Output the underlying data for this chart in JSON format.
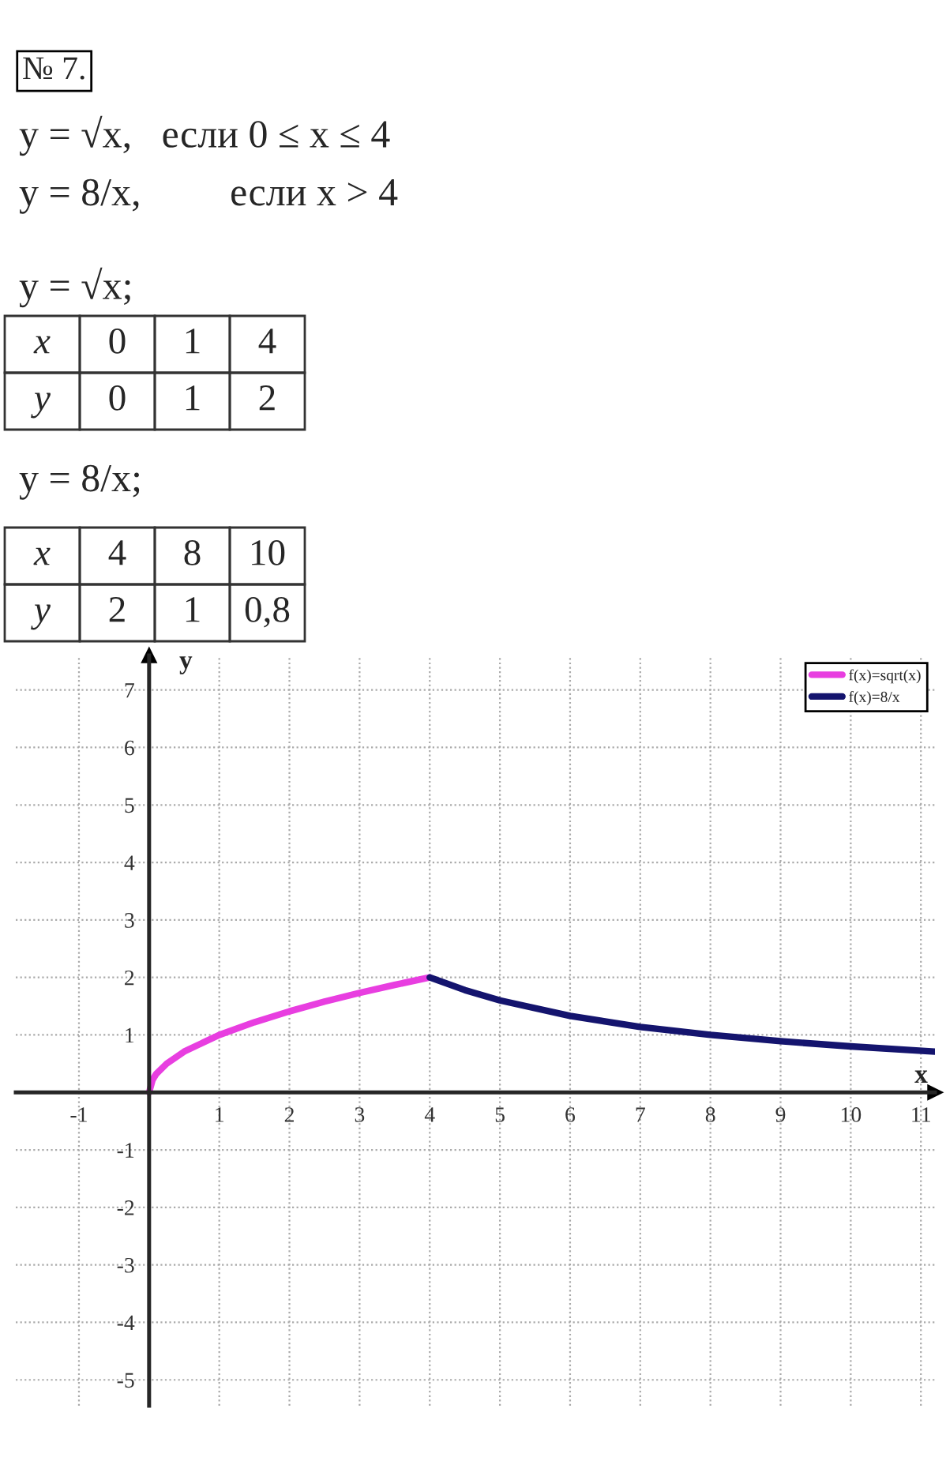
{
  "chart_data": {
    "type": "line",
    "xlabel": "x",
    "ylabel": "y",
    "annotations": [
      "№ 7.",
      "y = √x,   если 0 ≤ x ≤ 4",
      "y = 8/x,         если x > 4",
      "y = √x;",
      "x",
      "0",
      "1",
      "4",
      "y",
      "0",
      "1",
      "2",
      "y = 8/x;",
      "x",
      "4",
      "8",
      "10",
      "y",
      "2",
      "1",
      "0,8"
    ],
    "series": [
      {
        "name": "f(x)=sqrt(x)",
        "color": "#e83ee0",
        "x": [
          0,
          0.05,
          0.1,
          0.25,
          0.5,
          1,
          1.5,
          2,
          2.5,
          3,
          3.5,
          4
        ],
        "values": [
          0,
          0.22,
          0.32,
          0.5,
          0.71,
          1,
          1.22,
          1.41,
          1.58,
          1.73,
          1.87,
          2
        ]
      },
      {
        "name": "f(x)=8/x",
        "color": "#14146e",
        "x": [
          4,
          4.5,
          5,
          6,
          7,
          8,
          9,
          10,
          11.2
        ],
        "values": [
          2,
          1.78,
          1.6,
          1.33,
          1.14,
          1,
          0.89,
          0.8,
          0.71
        ]
      }
    ],
    "xlim": [
      -1.9,
      11.2
    ],
    "ylim": [
      -5.45,
      7.6
    ],
    "xticks": [
      -1,
      1,
      2,
      3,
      4,
      5,
      6,
      7,
      8,
      9,
      10,
      11
    ],
    "yticks": [
      -5,
      -4,
      -3,
      -2,
      -1,
      1,
      2,
      3,
      4,
      5,
      6,
      7
    ],
    "grid": true,
    "legend": "top right",
    "marker": "none",
    "line_style": "solid"
  }
}
